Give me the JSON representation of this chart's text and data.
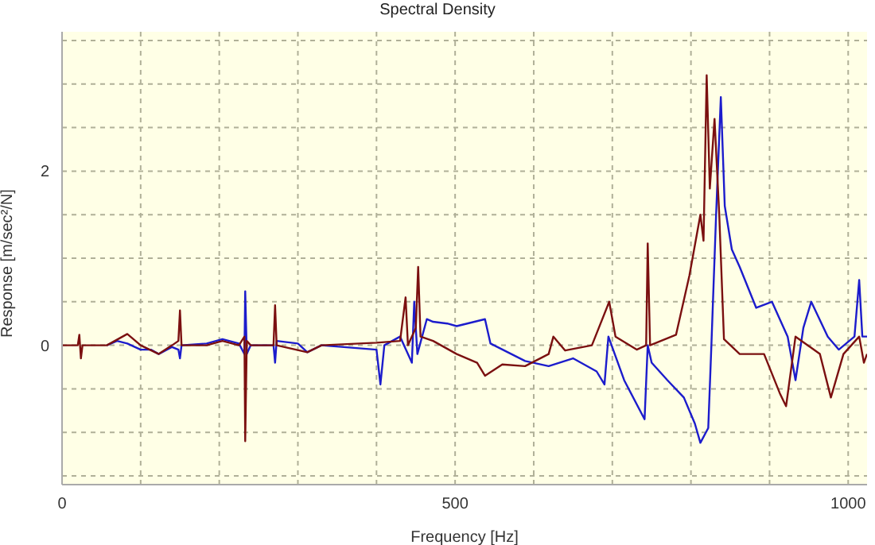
{
  "chart_data": {
    "type": "line",
    "title": "Spectral Density",
    "xlabel": "Frequency [Hz]",
    "ylabel": "Response [m/sec²/N]",
    "xlim": [
      0,
      1024
    ],
    "ylim": [
      -1.6,
      3.6
    ],
    "xticks": [
      0,
      {
        "value": 100,
        "label": null
      },
      {
        "value": 200,
        "label": null
      },
      {
        "value": 300,
        "label": null
      },
      {
        "value": 400,
        "label": null
      },
      500,
      {
        "value": 600,
        "label": null
      },
      {
        "value": 700,
        "label": null
      },
      {
        "value": 800,
        "label": null
      },
      {
        "value": 900,
        "label": null
      },
      1000
    ],
    "yticks": [
      {
        "value": -1.5,
        "label": null
      },
      {
        "value": -1,
        "label": null
      },
      {
        "value": -0.5,
        "label": null
      },
      0,
      {
        "value": 0.5,
        "label": null
      },
      {
        "value": 1,
        "label": null
      },
      {
        "value": 1.5,
        "label": null
      },
      2,
      {
        "value": 2.5,
        "label": null
      },
      {
        "value": 3,
        "label": null
      },
      {
        "value": 3.5,
        "label": null
      }
    ],
    "grid": true,
    "legend": false,
    "marker": "none",
    "line_style": "solid",
    "series": [
      {
        "color": "#1c1ccc",
        "x": [
          57,
          70,
          83,
          100,
          113,
          123,
          140,
          148,
          150,
          152,
          184,
          204,
          225,
          232,
          233,
          235,
          240,
          269,
          271,
          273,
          300,
          312,
          330,
          400,
          405,
          410,
          430,
          445,
          448,
          452,
          464,
          472,
          490,
          502,
          538,
          545,
          589,
          619,
          650,
          680,
          690,
          695,
          715,
          741,
          745,
          750,
          770,
          791,
          805,
          812,
          822,
          826,
          832,
          838,
          843,
          852,
          862,
          883,
          903,
          923,
          933,
          943,
          953,
          974,
          988,
          1008,
          1014,
          1018,
          1024
        ],
        "values": [
          0,
          0.05,
          0.02,
          -0.05,
          -0.05,
          -0.1,
          -0.02,
          -0.05,
          -0.15,
          0,
          0.02,
          0.07,
          0.02,
          -0.1,
          0.62,
          -0.1,
          0,
          0,
          -0.2,
          0.05,
          0.02,
          -0.08,
          0,
          -0.05,
          -0.45,
          0,
          0.1,
          -0.2,
          0.5,
          -0.1,
          0.3,
          0.27,
          0.25,
          0.22,
          0.3,
          0.02,
          -0.18,
          -0.24,
          -0.15,
          -0.3,
          -0.45,
          0.1,
          -0.4,
          -0.85,
          0,
          -0.2,
          -0.4,
          -0.6,
          -0.9,
          -1.12,
          -0.95,
          0,
          1.5,
          2.85,
          1.6,
          1.1,
          0.9,
          0.43,
          0.5,
          0.1,
          -0.4,
          0.2,
          0.5,
          0.1,
          -0.05,
          0.1,
          0.75,
          0.1,
          0.1
        ]
      },
      {
        "color": "#7b1010",
        "x": [
          0,
          20,
          22,
          24,
          26,
          57,
          83,
          100,
          123,
          140,
          148,
          150,
          152,
          184,
          204,
          225,
          232,
          233,
          235,
          240,
          269,
          271,
          273,
          312,
          330,
          400,
          430,
          437,
          440,
          450,
          453,
          456,
          472,
          502,
          528,
          538,
          560,
          589,
          619,
          625,
          640,
          674,
          696,
          704,
          731,
          743,
          745,
          748,
          781,
          798,
          812,
          816,
          820,
          824,
          830,
          836,
          842,
          862,
          893,
          913,
          921,
          933,
          964,
          978,
          994,
          1014,
          1020,
          1024
        ],
        "values": [
          0,
          0,
          0.12,
          -0.15,
          0,
          0,
          0.13,
          0,
          -0.1,
          0,
          0.05,
          0.4,
          0,
          0,
          0.05,
          0,
          0.1,
          -1.1,
          0.05,
          0,
          0,
          0.46,
          0,
          -0.08,
          0,
          0.03,
          0.05,
          0.55,
          0,
          0.2,
          0.9,
          0.1,
          0.05,
          -0.1,
          -0.2,
          -0.35,
          -0.22,
          -0.24,
          -0.1,
          0.1,
          -0.06,
          0,
          0.5,
          0.1,
          -0.05,
          0,
          1.17,
          0,
          0.12,
          0.8,
          1.5,
          1.2,
          3.1,
          1.8,
          2.6,
          1.5,
          0.07,
          -0.1,
          -0.1,
          -0.55,
          -0.7,
          0.1,
          -0.1,
          -0.6,
          -0.1,
          0.1,
          -0.2,
          -0.1
        ]
      }
    ]
  }
}
